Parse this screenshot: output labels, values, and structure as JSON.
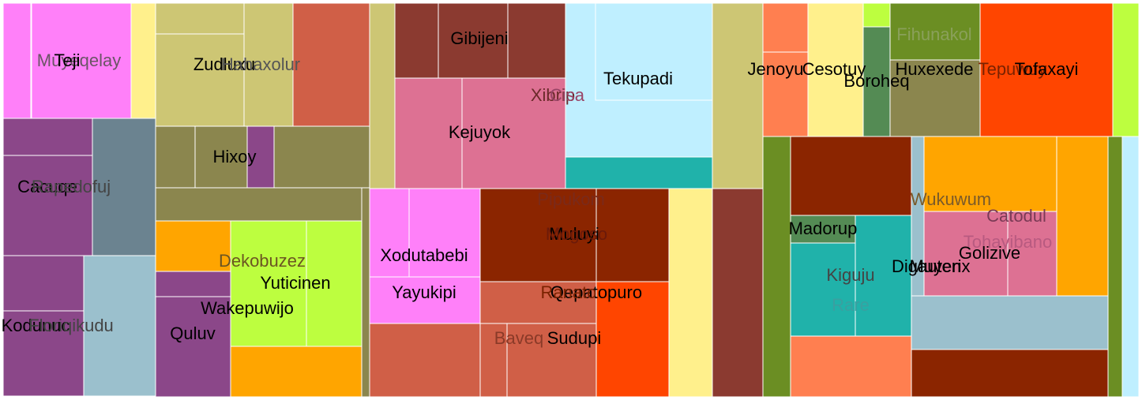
{
  "chart_data": {
    "type": "treemap",
    "title": "",
    "nodes": [
      {
        "label": "Muyeqelay",
        "color": "#ff80f9",
        "label_visible": true
      },
      {
        "label": "Teji",
        "color": "#ff80f9",
        "label_visible": true
      },
      {
        "label": "",
        "color": "#fff08c",
        "label_visible": false
      },
      {
        "label": "Cacuqe",
        "color": "#8b4789",
        "label_visible": true
      },
      {
        "label": "Rapedofuj",
        "color": "#6b8390",
        "label_visible": true
      },
      {
        "label": "Kodunuc",
        "color": "#8b4789",
        "label_visible": true
      },
      {
        "label": "Floriqikudu",
        "color": "#9bc0cd",
        "label_visible": true
      },
      {
        "label": "Zudluxu",
        "color": "#cdc674",
        "label_visible": true
      },
      {
        "label": "Hahaxolur",
        "color": "#cdc674",
        "label_visible": true
      },
      {
        "label": "",
        "color": "#d05f47",
        "label_visible": false
      },
      {
        "label": "Hixoy",
        "color": "#8b4789",
        "label_visible": true
      },
      {
        "label": "",
        "color": "#8b864e",
        "label_visible": false
      },
      {
        "label": "Dekobuzez",
        "color": "#ffa500",
        "label_visible": true
      },
      {
        "label": "Yuticinen",
        "color": "#bdfe3f",
        "label_visible": true
      },
      {
        "label": "Wakepuwijo",
        "color": "#8b4789",
        "label_visible": true
      },
      {
        "label": "Quluv",
        "color": "#8b4789",
        "label_visible": true
      },
      {
        "label": "Gibijeni",
        "color": "#8b3a30",
        "label_visible": true
      },
      {
        "label": "Kejuyok",
        "color": "#dd7193",
        "label_visible": true
      },
      {
        "label": "Xibrip",
        "color": "#dd7193",
        "label_visible": true
      },
      {
        "label": "Cisa",
        "color": "#dd7193",
        "label_visible": true
      },
      {
        "label": "Tekupadi",
        "color": "#bfefff",
        "label_visible": true
      },
      {
        "label": "",
        "color": "#20b2aa",
        "label_visible": false
      },
      {
        "label": "Xodutabebi",
        "color": "#ff80f9",
        "label_visible": true
      },
      {
        "label": "Yayukipi",
        "color": "#ff80f9",
        "label_visible": true
      },
      {
        "label": "Pipukom",
        "color": "#8b2500",
        "label_visible": true
      },
      {
        "label": "Muluyi",
        "color": "#8b2500",
        "label_visible": true
      },
      {
        "label": "Mogoso",
        "color": "#8b2500",
        "label_visible": true
      },
      {
        "label": "Qepatopuro",
        "color": "#d05f47",
        "label_visible": true
      },
      {
        "label": "Ranato",
        "color": "#ff4500",
        "label_visible": true
      },
      {
        "label": "Baveq",
        "color": "#d05f47",
        "label_visible": true
      },
      {
        "label": "Sudupi",
        "color": "#d05f47",
        "label_visible": true
      },
      {
        "label": "Jenoyu",
        "color": "#ff7f50",
        "label_visible": true
      },
      {
        "label": "Cesotuy",
        "color": "#fff08c",
        "label_visible": true
      },
      {
        "label": "Boroheq",
        "color": "#548b54",
        "label_visible": true
      },
      {
        "label": "Fihunakol",
        "color": "#6b8e23",
        "label_visible": true
      },
      {
        "label": "Huxexede",
        "color": "#8b864e",
        "label_visible": true
      },
      {
        "label": "Tepuwuy",
        "color": "#ff4500",
        "label_visible": true
      },
      {
        "label": "Tofaxayi",
        "color": "#ff4500",
        "label_visible": true
      },
      {
        "label": "Madorup",
        "color": "#8b2500",
        "label_visible": true
      },
      {
        "label": "Kiguju",
        "color": "#20b2aa",
        "label_visible": true
      },
      {
        "label": "Rare",
        "color": "#20b2aa",
        "label_visible": true
      },
      {
        "label": "Wukuwum",
        "color": "#ffa500",
        "label_visible": true
      },
      {
        "label": "Catodul",
        "color": "#dd7193",
        "label_visible": true
      },
      {
        "label": "Tohayibano",
        "color": "#dd7193",
        "label_visible": true
      },
      {
        "label": "Golizive",
        "color": "#dd7193",
        "label_visible": true
      },
      {
        "label": "Digauten",
        "color": "#9bc0cd",
        "label_visible": true
      },
      {
        "label": "Muyerix",
        "color": "#dd7193",
        "label_visible": true
      }
    ]
  }
}
